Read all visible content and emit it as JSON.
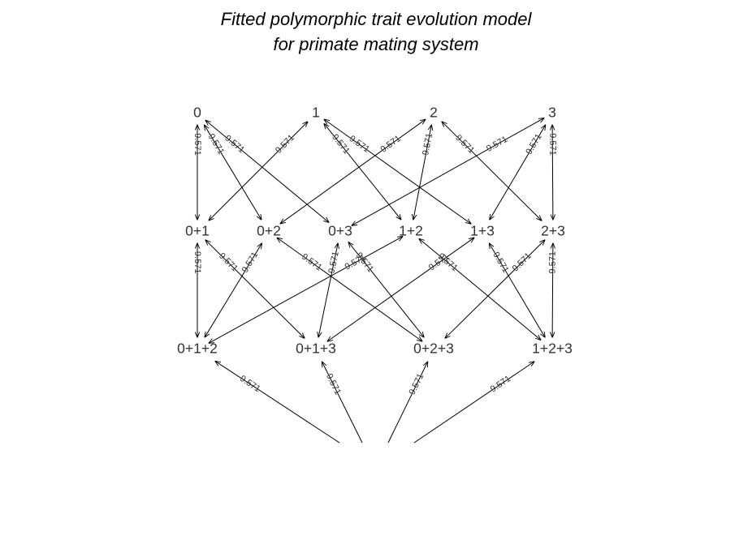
{
  "title": {
    "line1": "Fitted polymorphic trait evolution model",
    "line2": "for primate mating system"
  },
  "nodes": [
    "0",
    "1",
    "2",
    "3",
    "0+1",
    "0+2",
    "0+3",
    "1+2",
    "1+3",
    "2+3",
    "0+1+2",
    "0+1+3",
    "0+2+3",
    "1+2+3"
  ],
  "edges": [
    {
      "from": "0",
      "to": "0+1",
      "label": "9.571"
    },
    {
      "from": "0",
      "to": "0+2",
      "label": "9.571"
    },
    {
      "from": "0",
      "to": "0+3",
      "label": "9.571"
    },
    {
      "from": "1",
      "to": "0+1",
      "label": "9.571"
    },
    {
      "from": "1",
      "to": "1+2",
      "label": "9.571"
    },
    {
      "from": "1",
      "to": "1+3",
      "label": "9.571"
    },
    {
      "from": "2",
      "to": "0+2",
      "label": "9.571"
    },
    {
      "from": "2",
      "to": "1+2",
      "label": "9.571"
    },
    {
      "from": "2",
      "to": "2+3",
      "label": "9.571"
    },
    {
      "from": "3",
      "to": "0+3",
      "label": "9.571"
    },
    {
      "from": "3",
      "to": "1+3",
      "label": "9.571"
    },
    {
      "from": "3",
      "to": "2+3",
      "label": "9.571"
    },
    {
      "from": "0+1",
      "to": "0+1+2",
      "label": "9.571"
    },
    {
      "from": "0+1",
      "to": "0+1+3",
      "label": "9.571"
    },
    {
      "from": "0+2",
      "to": "0+1+2",
      "label": "9.571"
    },
    {
      "from": "0+2",
      "to": "0+2+3",
      "label": "9.571"
    },
    {
      "from": "0+3",
      "to": "0+1+3",
      "label": "9.571"
    },
    {
      "from": "0+3",
      "to": "0+2+3",
      "label": "9.571"
    },
    {
      "from": "1+2",
      "to": "0+1+2",
      "label": "9.571"
    },
    {
      "from": "1+2",
      "to": "1+2+3",
      "label": "9.571"
    },
    {
      "from": "1+3",
      "to": "0+1+3",
      "label": "9.571"
    },
    {
      "from": "1+3",
      "to": "1+2+3",
      "label": "9.571"
    },
    {
      "from": "2+3",
      "to": "0+2+3",
      "label": "9.571"
    },
    {
      "from": "2+3",
      "to": "1+2+3",
      "label": "9.571"
    },
    {
      "from": "bottom",
      "to": "0+1+2",
      "label": "9.571"
    },
    {
      "from": "bottom",
      "to": "0+1+3",
      "label": "9.571"
    },
    {
      "from": "bottom",
      "to": "0+2+3",
      "label": "9.571"
    },
    {
      "from": "bottom",
      "to": "1+2+3",
      "label": "9.571"
    }
  ]
}
